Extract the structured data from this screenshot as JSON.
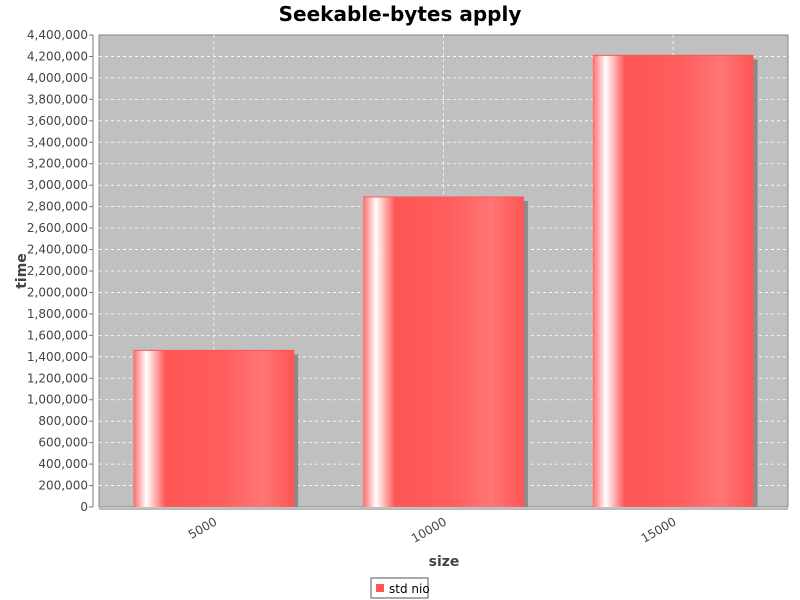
{
  "chart_data": {
    "type": "bar",
    "title": "Seekable-bytes apply",
    "xlabel": "size",
    "ylabel": "time",
    "categories": [
      "5000",
      "10000",
      "15000"
    ],
    "series": [
      {
        "name": "std nio",
        "values": [
          1460000,
          2890000,
          4210000
        ]
      }
    ],
    "ylim": [
      0,
      4400000
    ],
    "yticks": [
      0,
      200000,
      400000,
      600000,
      800000,
      1000000,
      1200000,
      1400000,
      1600000,
      1800000,
      2000000,
      2200000,
      2400000,
      2600000,
      2800000,
      3000000,
      3200000,
      3400000,
      3600000,
      3800000,
      4000000,
      4200000,
      4400000
    ],
    "grid": true,
    "legend": "bottom-center",
    "colors": {
      "bar": "#ff5555",
      "plot_background": "#c0c0c0",
      "gridline": "#ffffff"
    }
  }
}
